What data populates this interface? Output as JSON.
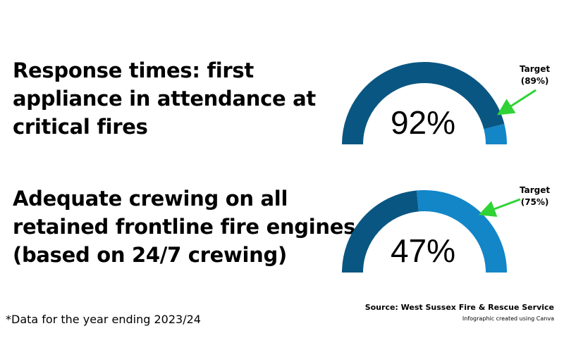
{
  "colors": {
    "achieved": "#0a5682",
    "remaining": "#1386c8",
    "arrow": "#2fd336",
    "text": "#000000"
  },
  "chart_data": [
    {
      "type": "gauge",
      "title": "Response times: first appliance in attendance at critical fires",
      "title_lines": [
        "Response times: first",
        "appliance in attendance at",
        "critical fires"
      ],
      "value": 92,
      "value_label": "92%",
      "range": [
        0,
        100
      ],
      "target": 89,
      "target_label_lines": [
        "Target",
        "(89%)"
      ]
    },
    {
      "type": "gauge",
      "title": "Adequate crewing on all retained frontline fire engines (based on 24/7 crewing)",
      "title_lines": [
        "Adequate crewing on all",
        "retained frontline fire engines",
        "(based on 24/7 crewing)"
      ],
      "value": 47,
      "value_label": "47%",
      "range": [
        0,
        100
      ],
      "target": 75,
      "target_label_lines": [
        "Target",
        "(75%)"
      ]
    }
  ],
  "footnote": "*Data for the year ending 2023/24",
  "source": "Source: West Sussex Fire & Rescue Service",
  "credit": "Infographic created using Canva"
}
